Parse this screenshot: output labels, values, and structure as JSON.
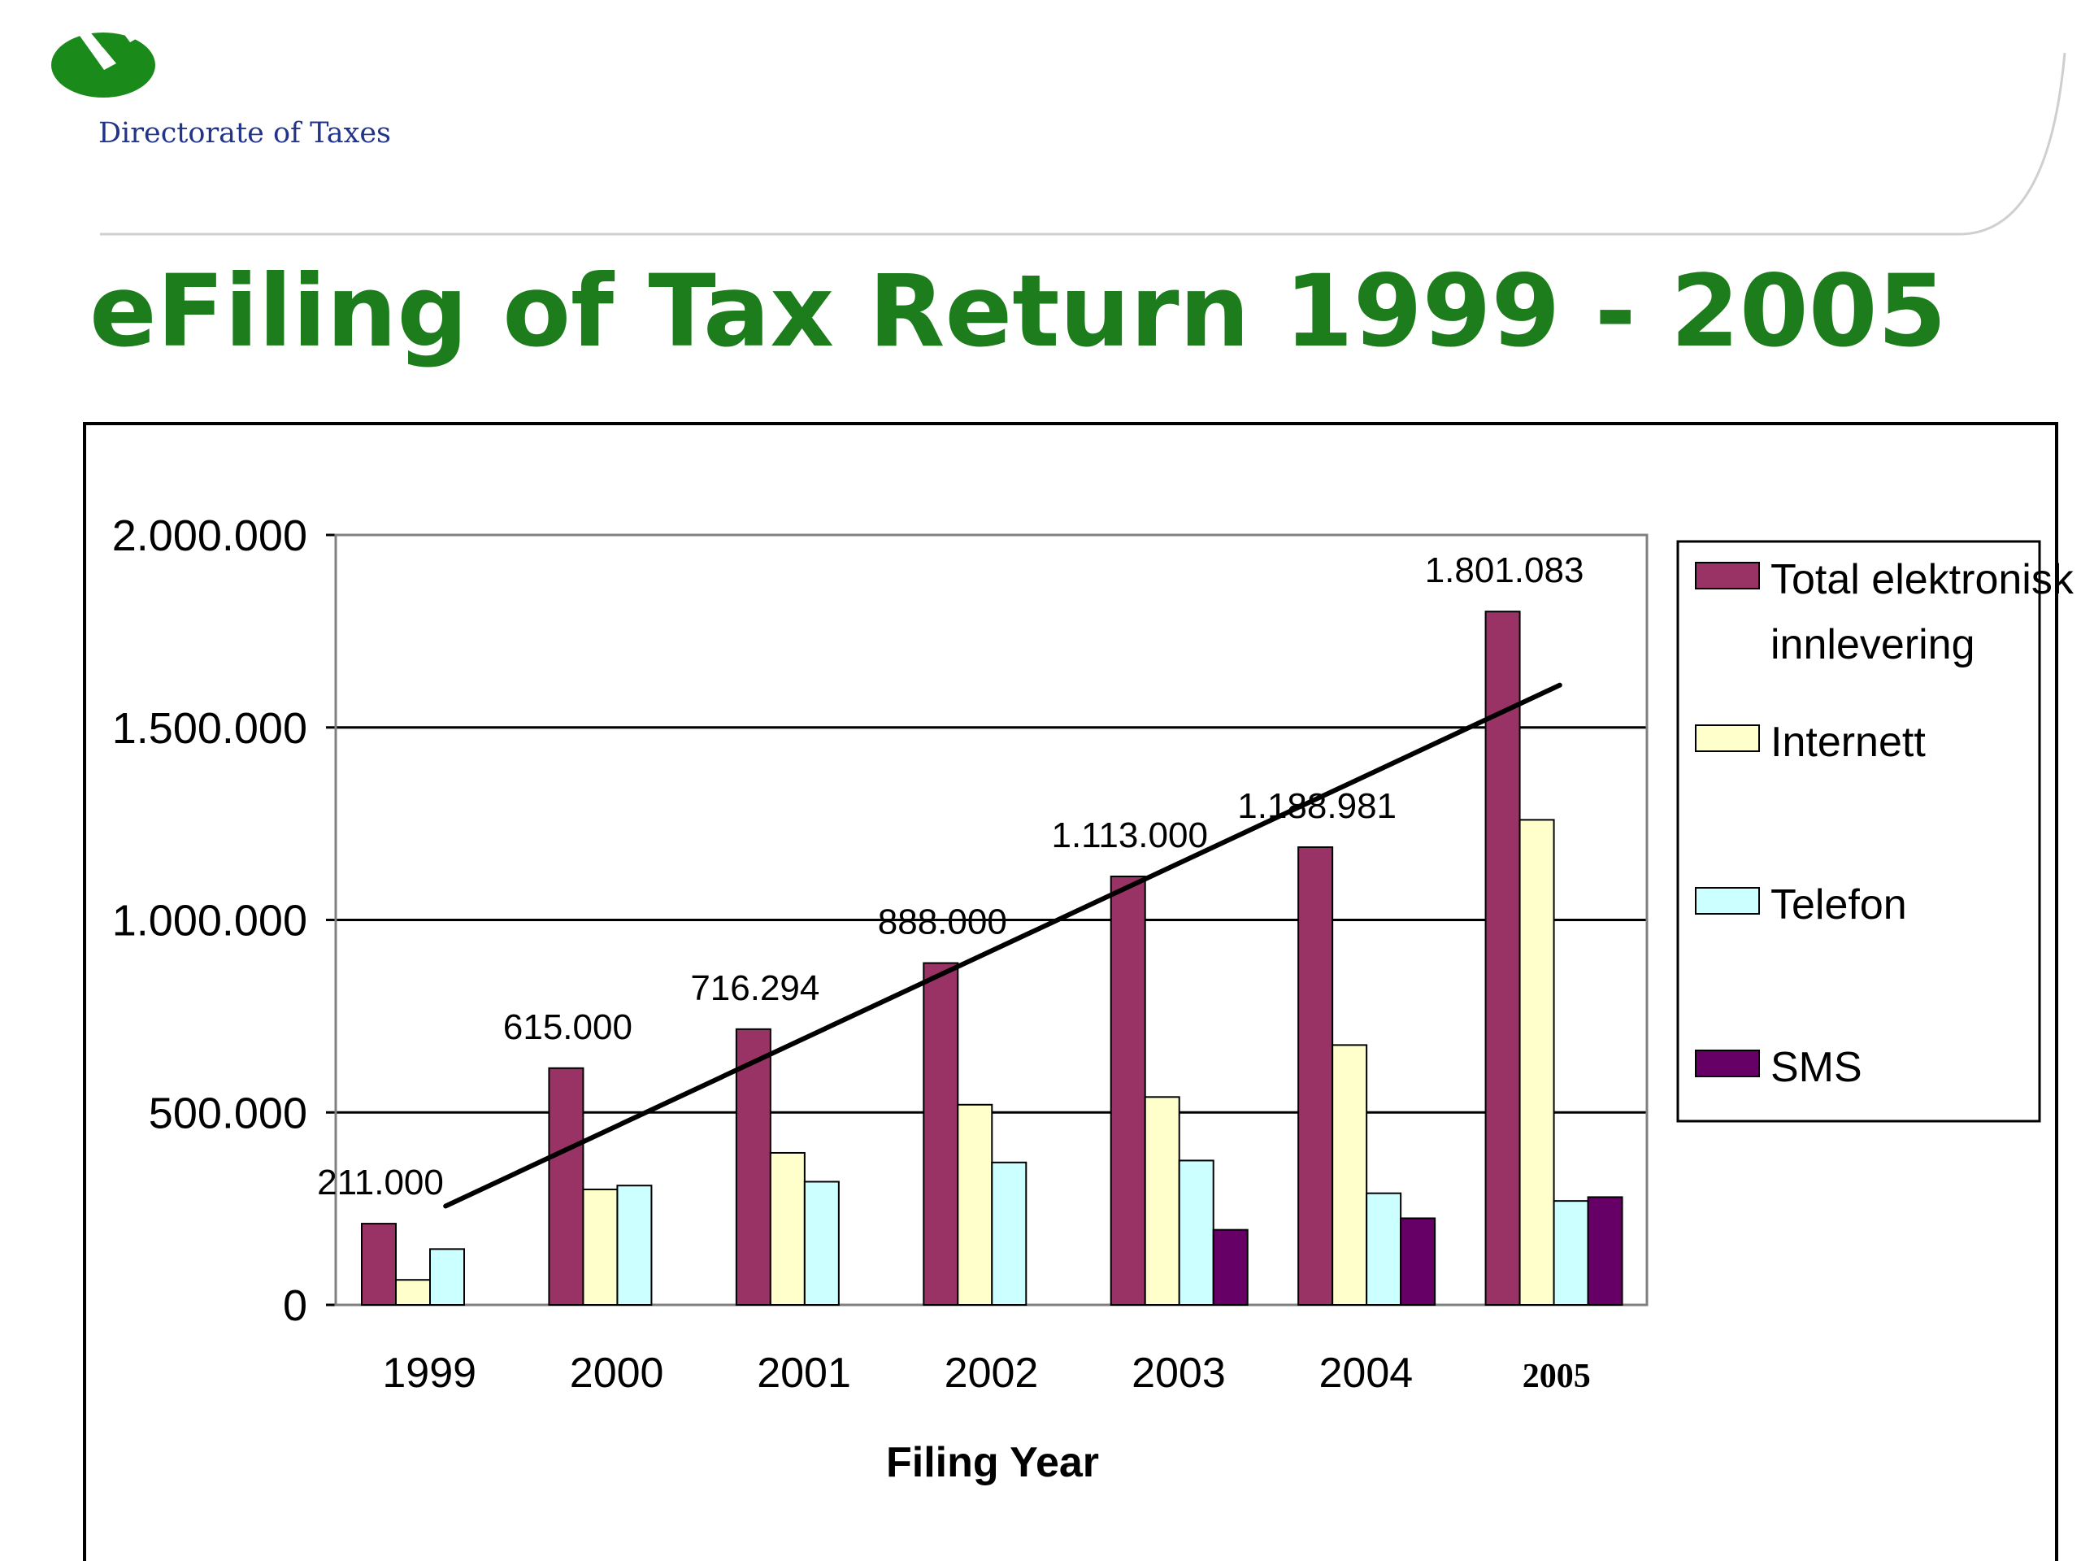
{
  "header": {
    "org_name": "Directorate of Taxes",
    "logo": "directorate-logo-icon"
  },
  "slide": {
    "title": "eFiling of Tax Return 1999 - 2005"
  },
  "colors": {
    "title_green": "#1d7d1d",
    "logo_green": "#1a8a1a",
    "org_blue": "#22338a",
    "total": "#993366",
    "internett": "#ffffcc",
    "telefon": "#ccffff",
    "sms": "#660066"
  },
  "chart_data": {
    "type": "bar",
    "categories": [
      "1999",
      "2000",
      "2001",
      "2002",
      "2003",
      "2004",
      "2005"
    ],
    "series": [
      {
        "name": "Total elektronisk innlevering",
        "values": [
          211000,
          615000,
          716294,
          888000,
          1113000,
          1188981,
          1801083
        ]
      },
      {
        "name": "Internett",
        "values": [
          65000,
          300000,
          395000,
          520000,
          540000,
          675000,
          1260000
        ]
      },
      {
        "name": "Telefon",
        "values": [
          145000,
          310000,
          320000,
          370000,
          375000,
          290000,
          270000
        ]
      },
      {
        "name": "SMS",
        "values": [
          null,
          null,
          null,
          null,
          195000,
          225000,
          280000
        ]
      }
    ],
    "data_labels": [
      "211.000",
      "615.000",
      "716.294",
      "888.000",
      "1.113.000",
      "1.188.981",
      "1.801.083"
    ],
    "trendline": {
      "type": "linear",
      "series": "Total elektronisk innlevering"
    },
    "xlabel": "Filing Year",
    "ylabel": "",
    "ylim": [
      0,
      2000000
    ],
    "yticks": [
      0,
      500000,
      1000000,
      1500000,
      2000000
    ],
    "ytick_labels": [
      "0",
      "500.000",
      "1.000.000",
      "1.500.000",
      "2.000.000"
    ],
    "grid": true,
    "legend_position": "right"
  }
}
